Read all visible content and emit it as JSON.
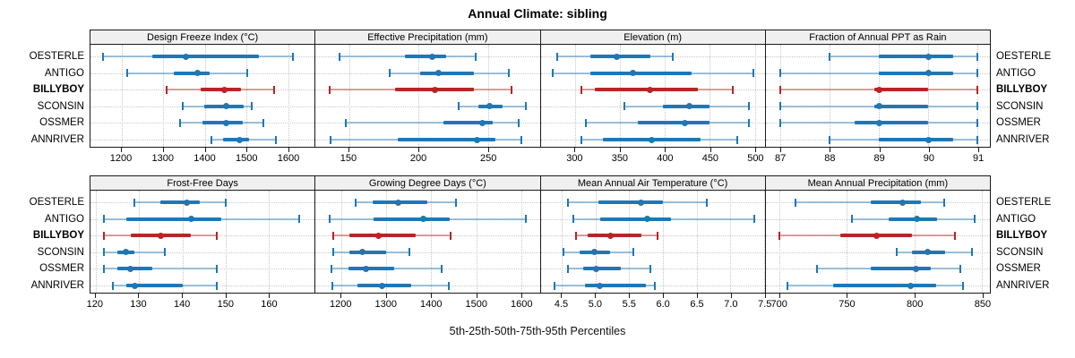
{
  "title": "Annual Climate: sibling",
  "caption": "5th-25th-50th-75th-95th Percentiles",
  "sites": [
    "OESTERLE",
    "ANTIGO",
    "BILLYBOY",
    "SCONSIN",
    "OSSMER",
    "ANNRIVER"
  ],
  "highlight_site": "BILLYBOY",
  "colors": {
    "series_normal": "#1f77b4",
    "series_normal_light": "rgba(31,119,180,0.42)",
    "series_highlight": "#b82525",
    "series_highlight_light": "rgba(184,37,37,0.42)",
    "grid": "#c8c8c8",
    "strip_bg": "#f0f0f0",
    "panel_border": "#1a1a1a"
  },
  "chart_data": {
    "type": "dotplot-interval",
    "percentiles": [
      5,
      25,
      50,
      75,
      95
    ],
    "note": "Each series row shows [5th, 25th, 50th, 75th, 95th] percentile values",
    "panels": [
      {
        "row": 1,
        "title": "Design Freeze Index (°C)",
        "xlim": [
          1125,
          1663
        ],
        "ticks": [
          1200,
          1300,
          1400,
          1500,
          1600
        ],
        "tick_labels": [
          "1200",
          "1300",
          "1400",
          "1500",
          "1600"
        ],
        "series": [
          {
            "name": "OESTERLE",
            "values": [
              1156,
              1273,
              1354,
              1530,
              1610
            ]
          },
          {
            "name": "ANTIGO",
            "values": [
              1213,
              1324,
              1382,
              1411,
              1501
            ]
          },
          {
            "name": "BILLYBOY",
            "values": [
              1307,
              1389,
              1447,
              1487,
              1565
            ]
          },
          {
            "name": "SCONSIN",
            "values": [
              1346,
              1397,
              1450,
              1492,
              1513
            ]
          },
          {
            "name": "OSSMER",
            "values": [
              1339,
              1394,
              1450,
              1490,
              1540
            ]
          },
          {
            "name": "ANNRIVER",
            "values": [
              1416,
              1443,
              1484,
              1506,
              1571
            ]
          }
        ]
      },
      {
        "row": 1,
        "title": "Effective Precipitation (mm)",
        "xlim": [
          126,
          287
        ],
        "ticks": [
          150,
          200,
          250
        ],
        "tick_labels": [
          "150",
          "200",
          "250"
        ],
        "series": [
          {
            "name": "OESTERLE",
            "values": [
              143,
              190,
              210,
              220,
              241
            ]
          },
          {
            "name": "ANTIGO",
            "values": [
              179,
              201,
              214,
              240,
              265
            ]
          },
          {
            "name": "BILLYBOY",
            "values": [
              136,
              183,
              212,
              240,
              267
            ]
          },
          {
            "name": "SCONSIN",
            "values": [
              229,
              243,
              251,
              260,
              277
            ]
          },
          {
            "name": "OSSMER",
            "values": [
              148,
              218,
              246,
              253,
              272
            ]
          },
          {
            "name": "ANNRIVER",
            "values": [
              137,
              185,
              242,
              255,
              274
            ]
          }
        ]
      },
      {
        "row": 1,
        "title": "Elevation (m)",
        "xlim": [
          262,
          511
        ],
        "ticks": [
          300,
          350,
          400,
          450,
          500
        ],
        "tick_labels": [
          "300",
          "350",
          "400",
          "450",
          "500"
        ],
        "series": [
          {
            "name": "OESTERLE",
            "values": [
              280,
              317,
              347,
              384,
              409
            ]
          },
          {
            "name": "ANTIGO",
            "values": [
              275,
              317,
              364,
              430,
              498
            ]
          },
          {
            "name": "BILLYBOY",
            "values": [
              307,
              322,
              383,
              437,
              475
            ]
          },
          {
            "name": "SCONSIN",
            "values": [
              355,
              398,
              427,
              450,
              493
            ]
          },
          {
            "name": "OSSMER",
            "values": [
              312,
              370,
              422,
              450,
              493
            ]
          },
          {
            "name": "ANNRIVER",
            "values": [
              307,
              331,
              385,
              440,
              480
            ]
          }
        ]
      },
      {
        "row": 1,
        "title": "Fraction of Annual PPT as Rain",
        "xlim": [
          86.7,
          91.25
        ],
        "ticks": [
          87,
          88,
          89,
          90,
          91
        ],
        "tick_labels": [
          "87",
          "88",
          "89",
          "90",
          "91"
        ],
        "series": [
          {
            "name": "OESTERLE",
            "values": [
              88,
              89,
              90,
              90.5,
              91
            ]
          },
          {
            "name": "ANTIGO",
            "values": [
              87,
              89,
              90,
              90.5,
              91
            ]
          },
          {
            "name": "BILLYBOY",
            "values": [
              87,
              88.9,
              89,
              90,
              91
            ]
          },
          {
            "name": "SCONSIN",
            "values": [
              87,
              88.9,
              89,
              90,
              91
            ]
          },
          {
            "name": "OSSMER",
            "values": [
              87,
              88.5,
              89,
              90,
              91
            ]
          },
          {
            "name": "ANNRIVER",
            "values": [
              88,
              89,
              90,
              90.5,
              91
            ]
          }
        ]
      },
      {
        "row": 2,
        "title": "Frost-Free Days",
        "xlim": [
          118.8,
          170.5
        ],
        "ticks": [
          120,
          130,
          140,
          150,
          160
        ],
        "tick_labels": [
          "120",
          "130",
          "140",
          "150",
          "160"
        ],
        "series": [
          {
            "name": "OESTERLE",
            "values": [
              129,
              135,
              141,
              144,
              150
            ]
          },
          {
            "name": "ANTIGO",
            "values": [
              122,
              127,
              142,
              149,
              167
            ]
          },
          {
            "name": "BILLYBOY",
            "values": [
              122,
              128,
              135,
              142,
              148
            ]
          },
          {
            "name": "SCONSIN",
            "values": [
              122,
              125,
              127,
              129,
              136
            ]
          },
          {
            "name": "OSSMER",
            "values": [
              122,
              125,
              128,
              133,
              148
            ]
          },
          {
            "name": "ANNRIVER",
            "values": [
              124,
              127,
              129,
              140,
              148
            ]
          }
        ]
      },
      {
        "row": 2,
        "title": "Growing Degree Days (°C)",
        "xlim": [
          1143,
          1641
        ],
        "ticks": [
          1200,
          1300,
          1400,
          1500,
          1600
        ],
        "tick_labels": [
          "1200",
          "1300",
          "1400",
          "1500",
          "1600"
        ],
        "series": [
          {
            "name": "OESTERLE",
            "values": [
              1232,
              1270,
              1327,
              1392,
              1455
            ]
          },
          {
            "name": "ANTIGO",
            "values": [
              1175,
              1272,
              1382,
              1442,
              1610
            ]
          },
          {
            "name": "BILLYBOY",
            "values": [
              1182,
              1218,
              1283,
              1365,
              1442
            ]
          },
          {
            "name": "SCONSIN",
            "values": [
              1182,
              1218,
              1247,
              1300,
              1351
            ]
          },
          {
            "name": "OSSMER",
            "values": [
              1178,
              1216,
              1254,
              1318,
              1424
            ]
          },
          {
            "name": "ANNRIVER",
            "values": [
              1180,
              1236,
              1290,
              1356,
              1440
            ]
          }
        ]
      },
      {
        "row": 2,
        "title": "Mean Annual Air Temperature (°C)",
        "xlim": [
          4.19,
          7.51
        ],
        "ticks": [
          4.5,
          5.0,
          5.5,
          6.0,
          6.5,
          7.0,
          7.5
        ],
        "tick_labels": [
          "4.5",
          "5.0",
          "5.5",
          "6.0",
          "6.5",
          "7.0",
          "7.5"
        ],
        "series": [
          {
            "name": "OESTERLE",
            "values": [
              4.6,
              5.05,
              5.67,
              6.0,
              6.65
            ]
          },
          {
            "name": "ANTIGO",
            "values": [
              4.67,
              5.07,
              5.77,
              6.12,
              7.35
            ]
          },
          {
            "name": "BILLYBOY",
            "values": [
              4.72,
              4.88,
              5.22,
              5.68,
              5.92
            ]
          },
          {
            "name": "SCONSIN",
            "values": [
              4.53,
              4.77,
              4.98,
              5.22,
              5.56
            ]
          },
          {
            "name": "OSSMER",
            "values": [
              4.59,
              4.82,
              5.01,
              5.38,
              5.82
            ]
          },
          {
            "name": "ANNRIVER",
            "values": [
              4.4,
              4.85,
              5.07,
              5.75,
              5.88
            ]
          }
        ]
      },
      {
        "row": 2,
        "title": "Mean Annual Precipitation (mm)",
        "xlim": [
          690,
          856
        ],
        "ticks": [
          700,
          750,
          800,
          850
        ],
        "tick_labels": [
          "700",
          "750",
          "800",
          "850"
        ],
        "series": [
          {
            "name": "OESTERLE",
            "values": [
              712,
              768,
              791,
              805,
              822
            ]
          },
          {
            "name": "ANTIGO",
            "values": [
              754,
              781,
              802,
              817,
              845
            ]
          },
          {
            "name": "BILLYBOY",
            "values": [
              700,
              745,
              772,
              798,
              830
            ]
          },
          {
            "name": "SCONSIN",
            "values": [
              787,
              798,
              810,
              823,
              843
            ]
          },
          {
            "name": "OSSMER",
            "values": [
              728,
              768,
              801,
              812,
              834
            ]
          },
          {
            "name": "ANNRIVER",
            "values": [
              706,
              740,
              797,
              816,
              836
            ]
          }
        ]
      }
    ]
  }
}
